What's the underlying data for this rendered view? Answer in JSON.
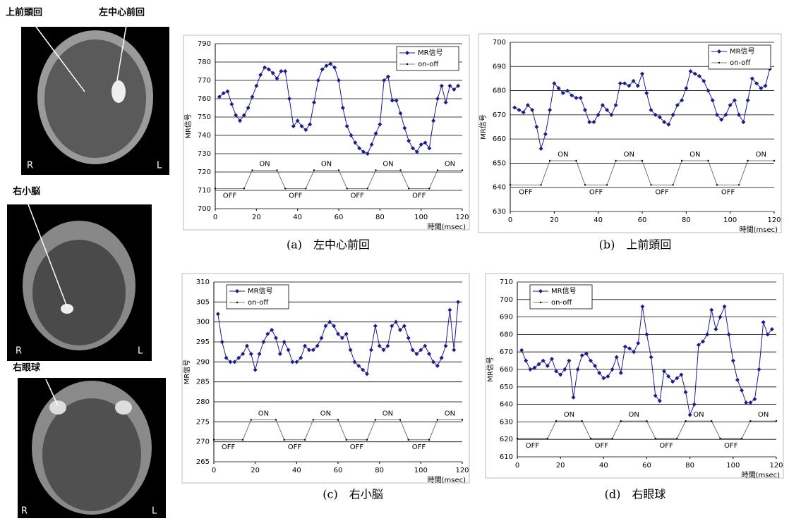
{
  "images": [
    {
      "labels": [
        "上前頭回",
        "左中心前回"
      ],
      "left": "R",
      "right": "L"
    },
    {
      "labels": [
        "右小脳"
      ],
      "left": "R",
      "right": "L"
    },
    {
      "labels": [
        "右眼球"
      ],
      "left": "R",
      "right": "L"
    }
  ],
  "chart_data": [
    {
      "type": "line",
      "caption": "(a)　左中心前回",
      "y_label": "MR信号",
      "x_label": "時間(msec)",
      "legend": "upper right",
      "xlim": [
        0,
        120
      ],
      "xticks": [
        0,
        20,
        40,
        60,
        80,
        100,
        120
      ],
      "ylim": [
        700,
        790
      ],
      "yticks": [
        700,
        710,
        720,
        730,
        740,
        750,
        760,
        770,
        780,
        790
      ],
      "grid": true,
      "x": [
        2,
        4,
        6,
        8,
        10,
        12,
        14,
        16,
        18,
        20,
        22,
        24,
        26,
        28,
        30,
        32,
        34,
        36,
        38,
        40,
        42,
        44,
        46,
        48,
        50,
        52,
        54,
        56,
        58,
        60,
        62,
        64,
        66,
        68,
        70,
        72,
        74,
        76,
        78,
        80,
        82,
        84,
        86,
        88,
        90,
        92,
        94,
        96,
        98,
        100,
        102,
        104,
        106,
        108,
        110,
        112,
        114,
        116,
        118
      ],
      "series": [
        {
          "name": "MR信号",
          "color": "#1c1c8c",
          "values": [
            761,
            763,
            764,
            757,
            751,
            748,
            751,
            755,
            761,
            767,
            773,
            777,
            776,
            774,
            771,
            775,
            775,
            760,
            745,
            748,
            745,
            743,
            746,
            758,
            770,
            776,
            778,
            779,
            777,
            770,
            755,
            745,
            740,
            736,
            733,
            731,
            730,
            735,
            741,
            746,
            770,
            772,
            759,
            759,
            752,
            744,
            737,
            733,
            731,
            735,
            736,
            733,
            748,
            760,
            767,
            758,
            767,
            765,
            767
          ]
        },
        {
          "name": "on-off",
          "color": "#555555",
          "x": [
            0,
            14,
            18,
            30,
            34,
            44,
            48,
            60,
            64,
            74,
            78,
            90,
            94,
            104,
            108,
            120
          ],
          "values": [
            711,
            711,
            721,
            721,
            711,
            711,
            721,
            721,
            711,
            711,
            721,
            721,
            711,
            711,
            721,
            721
          ]
        }
      ],
      "annotations": [
        "OFF",
        "ON",
        "OFF",
        "ON",
        "OFF",
        "ON",
        "OFF",
        "ON"
      ]
    },
    {
      "type": "line",
      "caption": "(b)　上前頭回",
      "y_label": "MR信号",
      "x_label": "時間(msec)",
      "legend": "upper right",
      "xlim": [
        0,
        120
      ],
      "xticks": [
        0,
        20,
        40,
        60,
        80,
        100,
        120
      ],
      "ylim": [
        630,
        700
      ],
      "yticks": [
        630,
        640,
        650,
        660,
        670,
        680,
        690,
        700
      ],
      "grid": true,
      "x": [
        2,
        4,
        6,
        8,
        10,
        12,
        14,
        16,
        18,
        20,
        22,
        24,
        26,
        28,
        30,
        32,
        34,
        36,
        38,
        40,
        42,
        44,
        46,
        48,
        50,
        52,
        54,
        56,
        58,
        60,
        62,
        64,
        66,
        68,
        70,
        72,
        74,
        76,
        78,
        80,
        82,
        84,
        86,
        88,
        90,
        92,
        94,
        96,
        98,
        100,
        102,
        104,
        106,
        108,
        110,
        112,
        114,
        116,
        118
      ],
      "series": [
        {
          "name": "MR信号",
          "color": "#1c1c8c",
          "values": [
            673,
            672,
            671,
            674,
            672,
            665,
            656,
            662,
            672,
            683,
            681,
            679,
            680,
            678,
            677,
            677,
            672,
            667,
            667,
            670,
            674,
            672,
            670,
            674,
            683,
            683,
            682,
            684,
            682,
            687,
            679,
            672,
            670,
            669,
            667,
            666,
            670,
            674,
            676,
            681,
            688,
            687,
            686,
            684,
            680,
            676,
            670,
            668,
            670,
            674,
            676,
            670,
            667,
            676,
            685,
            683,
            681,
            682,
            689
          ]
        },
        {
          "name": "on-off",
          "color": "#555555",
          "x": [
            0,
            14,
            18,
            30,
            34,
            44,
            48,
            60,
            64,
            74,
            78,
            90,
            94,
            104,
            108,
            120
          ],
          "values": [
            641,
            641,
            651,
            651,
            641,
            641,
            651,
            651,
            641,
            641,
            651,
            651,
            641,
            641,
            651,
            651
          ]
        }
      ],
      "annotations": [
        "OFF",
        "ON",
        "OFF",
        "ON",
        "OFF",
        "ON",
        "OFF",
        "ON"
      ]
    },
    {
      "type": "line",
      "caption": "(c)　右小脳",
      "y_label": "MR信号",
      "x_label": "時間(msec)",
      "legend": "upper left",
      "xlim": [
        0,
        120
      ],
      "xticks": [
        0,
        20,
        40,
        60,
        80,
        100,
        120
      ],
      "ylim": [
        265,
        310
      ],
      "yticks": [
        265,
        270,
        275,
        280,
        285,
        290,
        295,
        300,
        305,
        310
      ],
      "grid": true,
      "x": [
        2,
        4,
        6,
        8,
        10,
        12,
        14,
        16,
        18,
        20,
        22,
        24,
        26,
        28,
        30,
        32,
        34,
        36,
        38,
        40,
        42,
        44,
        46,
        48,
        50,
        52,
        54,
        56,
        58,
        60,
        62,
        64,
        66,
        68,
        70,
        72,
        74,
        76,
        78,
        80,
        82,
        84,
        86,
        88,
        90,
        92,
        94,
        96,
        98,
        100,
        102,
        104,
        106,
        108,
        110,
        112,
        114,
        116,
        118
      ],
      "series": [
        {
          "name": "MR信号",
          "color": "#1c1c8c",
          "values": [
            302,
            295,
            291,
            290,
            290,
            291,
            292,
            294,
            292,
            288,
            292,
            295,
            297,
            298,
            296,
            292,
            295,
            293,
            290,
            290,
            291,
            294,
            293,
            293,
            294,
            296,
            299,
            300,
            299,
            297,
            296,
            297,
            293,
            290,
            289,
            288,
            287,
            293,
            299,
            294,
            293,
            294,
            299,
            300,
            298,
            299,
            296,
            293,
            292,
            293,
            294,
            292,
            290,
            289,
            291,
            294,
            303,
            293,
            305
          ]
        },
        {
          "name": "on-off",
          "color": "#555555",
          "x": [
            0,
            14,
            18,
            30,
            34,
            44,
            48,
            60,
            64,
            74,
            78,
            90,
            94,
            104,
            108,
            120
          ],
          "values": [
            270.5,
            270.5,
            275.5,
            275.5,
            270.5,
            270.5,
            275.5,
            275.5,
            270.5,
            270.5,
            275.5,
            275.5,
            270.5,
            270.5,
            275.5,
            275.5
          ]
        }
      ],
      "annotations": [
        "OFF",
        "ON",
        "OFF",
        "ON",
        "OFF",
        "ON",
        "OFF",
        "ON"
      ]
    },
    {
      "type": "line",
      "caption": "(d)　右眼球",
      "y_label": "MR信号",
      "x_label": "時間(msec)",
      "legend": "upper left",
      "xlim": [
        0,
        120
      ],
      "xticks": [
        0,
        20,
        40,
        60,
        80,
        100,
        120
      ],
      "ylim": [
        610,
        710
      ],
      "yticks": [
        610,
        620,
        630,
        640,
        650,
        660,
        670,
        680,
        690,
        700,
        710
      ],
      "grid": true,
      "x": [
        2,
        4,
        6,
        8,
        10,
        12,
        14,
        16,
        18,
        20,
        22,
        24,
        26,
        28,
        30,
        32,
        34,
        36,
        38,
        40,
        42,
        44,
        46,
        48,
        50,
        52,
        54,
        56,
        58,
        60,
        62,
        64,
        66,
        68,
        70,
        72,
        74,
        76,
        78,
        80,
        82,
        84,
        86,
        88,
        90,
        92,
        94,
        96,
        98,
        100,
        102,
        104,
        106,
        108,
        110,
        112,
        114,
        116,
        118
      ],
      "series": [
        {
          "name": "MR信号",
          "color": "#1c1c8c",
          "values": [
            671,
            665,
            660,
            661,
            663,
            665,
            662,
            666,
            659,
            657,
            660,
            665,
            644,
            660,
            668,
            669,
            665,
            662,
            658,
            655,
            656,
            660,
            667,
            658,
            673,
            672,
            670,
            675,
            696,
            680,
            667,
            645,
            642,
            659,
            656,
            653,
            655,
            657,
            647,
            634,
            640,
            674,
            676,
            680,
            694,
            683,
            690,
            696,
            680,
            665,
            654,
            648,
            641,
            641,
            643,
            660,
            687,
            680,
            683
          ]
        },
        {
          "name": "on-off",
          "color": "#555555",
          "x": [
            0,
            14,
            18,
            30,
            34,
            44,
            48,
            60,
            64,
            74,
            78,
            90,
            94,
            104,
            108,
            120
          ],
          "values": [
            620.5,
            620.5,
            630.5,
            630.5,
            620.5,
            620.5,
            630.5,
            630.5,
            620.5,
            620.5,
            630.5,
            630.5,
            620.5,
            620.5,
            630.5,
            630.5
          ]
        }
      ],
      "annotations": [
        "OFF",
        "ON",
        "OFF",
        "ON",
        "OFF",
        "ON",
        "OFF",
        "ON"
      ]
    }
  ]
}
